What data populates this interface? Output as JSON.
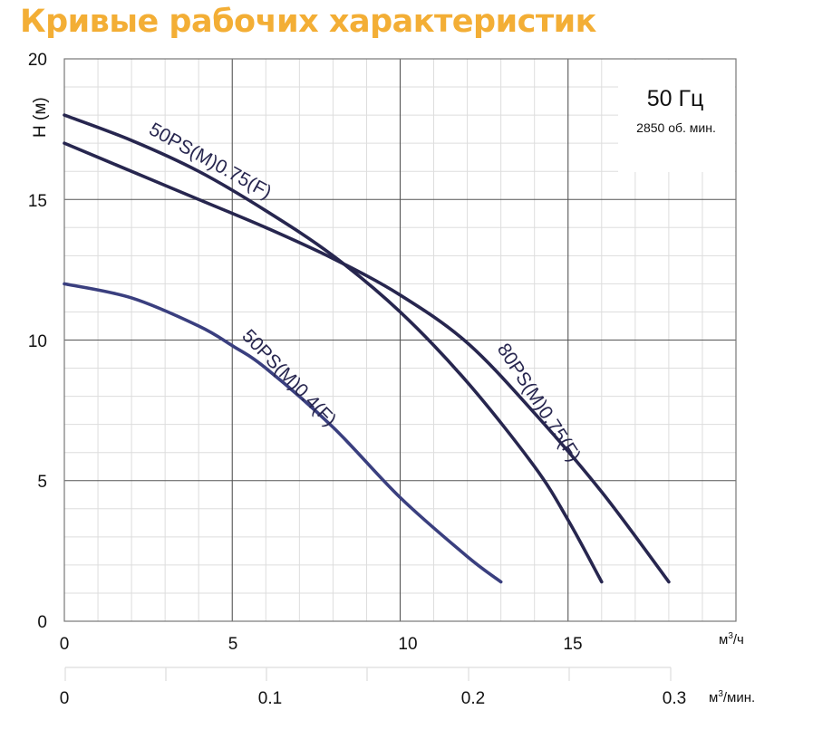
{
  "title": "Кривые рабочих характеристик",
  "annotations": {
    "frequency": "50 Гц",
    "rpm": "2850 об. мин."
  },
  "colors": {
    "title": "#f3ae35",
    "curve_dark": "#27264f",
    "curve_blue": "#3a3f7f",
    "grid_major": "#555555",
    "grid_minor": "#dddddd"
  },
  "chart_data": {
    "type": "line",
    "title": "Кривые рабочих характеристик",
    "xlabel": "м³/ч",
    "x2label": "м³/мин.",
    "ylabel": "H (м)",
    "xlim": [
      0,
      20
    ],
    "ylim": [
      0,
      20
    ],
    "x_ticks": [
      "0",
      "5",
      "10",
      "15"
    ],
    "x2_ticks": [
      "0",
      "0.1",
      "0.2",
      "0.3"
    ],
    "y_ticks": [
      "0",
      "5",
      "10",
      "15",
      "20"
    ],
    "grid": true,
    "legend": "inline labels on curves",
    "series": [
      {
        "name": "50PS(M)0.75(F)",
        "x": [
          0,
          2,
          4,
          6,
          8,
          10,
          12,
          14,
          15,
          16
        ],
        "y": [
          18.0,
          17.1,
          16.0,
          14.6,
          13.0,
          11.0,
          8.5,
          5.5,
          3.6,
          1.4
        ]
      },
      {
        "name": "80PS(M)0.75(F)",
        "x": [
          0,
          2,
          4,
          6,
          8,
          10,
          12,
          14,
          16,
          18
        ],
        "y": [
          17.0,
          16.0,
          15.0,
          14.0,
          12.9,
          11.6,
          9.9,
          7.4,
          4.6,
          1.4
        ]
      },
      {
        "name": "50PS(M)0.4(F)",
        "x": [
          0,
          2,
          4,
          5,
          6,
          8,
          10,
          12,
          13
        ],
        "y": [
          12.0,
          11.5,
          10.5,
          9.8,
          9.0,
          6.9,
          4.4,
          2.3,
          1.4
        ]
      }
    ]
  },
  "axis": {
    "y_label": "H (м)",
    "x_unit": "м³/ч",
    "x2_unit": "м³/мин.",
    "y_ticks": [
      "20",
      "15",
      "10",
      "5",
      "0"
    ],
    "x_ticks": [
      "0",
      "5",
      "10",
      "15"
    ],
    "x2_ticks": [
      "0",
      "0.1",
      "0.2",
      "0.3"
    ]
  },
  "curve_labels": [
    "50PS(M)0.75(F)",
    "80PS(M)0.75(F)",
    "50PS(M)0.4(F)"
  ]
}
